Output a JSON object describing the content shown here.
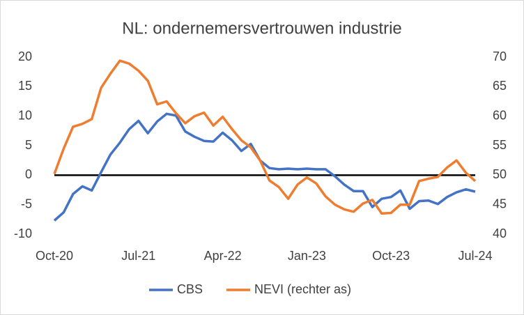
{
  "chart_data": {
    "type": "line",
    "title": "NL: ondernemersvertrouwen industrie",
    "categories": [
      "Oct-20",
      null,
      null,
      null,
      null,
      null,
      null,
      null,
      null,
      "Jul-21",
      null,
      null,
      null,
      null,
      null,
      null,
      null,
      null,
      "Apr-22",
      null,
      null,
      null,
      null,
      null,
      null,
      null,
      null,
      "Jan-23",
      null,
      null,
      null,
      null,
      null,
      null,
      null,
      null,
      "Oct-23",
      null,
      null,
      null,
      null,
      null,
      null,
      null,
      null,
      "Jul-24"
    ],
    "series": [
      {
        "name": "CBS",
        "color": "#4472c4",
        "axis": "y",
        "values": [
          -7.7,
          -6.3,
          -3.2,
          -1.9,
          -2.6,
          0.5,
          3.5,
          5.5,
          7.8,
          9.2,
          7.1,
          9.1,
          10.4,
          10.1,
          7.4,
          6.5,
          5.8,
          5.7,
          7.2,
          5.9,
          4.1,
          5.3,
          2.5,
          1.2,
          1.0,
          1.1,
          1.0,
          1.1,
          1.0,
          1.0,
          -0.2,
          -1.6,
          -2.7,
          -2.7,
          -5.4,
          -4.0,
          -3.7,
          -2.6,
          -5.7,
          -4.4,
          -4.3,
          -4.9,
          -3.7,
          -2.9,
          -2.4,
          -2.8
        ]
      },
      {
        "name": "NEVI (rechter as)",
        "color": "#ed7d31",
        "axis": "y2",
        "values": [
          50.2,
          54.5,
          58.2,
          58.7,
          59.5,
          64.8,
          67.2,
          69.4,
          68.9,
          67.7,
          66.0,
          62.0,
          62.5,
          60.5,
          58.8,
          60.0,
          60.6,
          58.4,
          59.9,
          57.8,
          55.9,
          54.7,
          52.5,
          49.1,
          48.0,
          46.0,
          48.4,
          49.6,
          48.6,
          46.4,
          45.0,
          44.2,
          43.8,
          45.2,
          45.8,
          43.5,
          43.6,
          45.0,
          45.0,
          49.0,
          49.4,
          49.7,
          51.3,
          52.5,
          50.4,
          49.0
        ]
      }
    ],
    "ylim": [
      -10,
      20
    ],
    "yticks": [
      -10,
      -5,
      0,
      5,
      10,
      15,
      20
    ],
    "y2lim": [
      40,
      70
    ],
    "y2ticks": [
      40,
      45,
      50,
      55,
      60,
      65,
      70
    ],
    "legend": "bottom"
  }
}
